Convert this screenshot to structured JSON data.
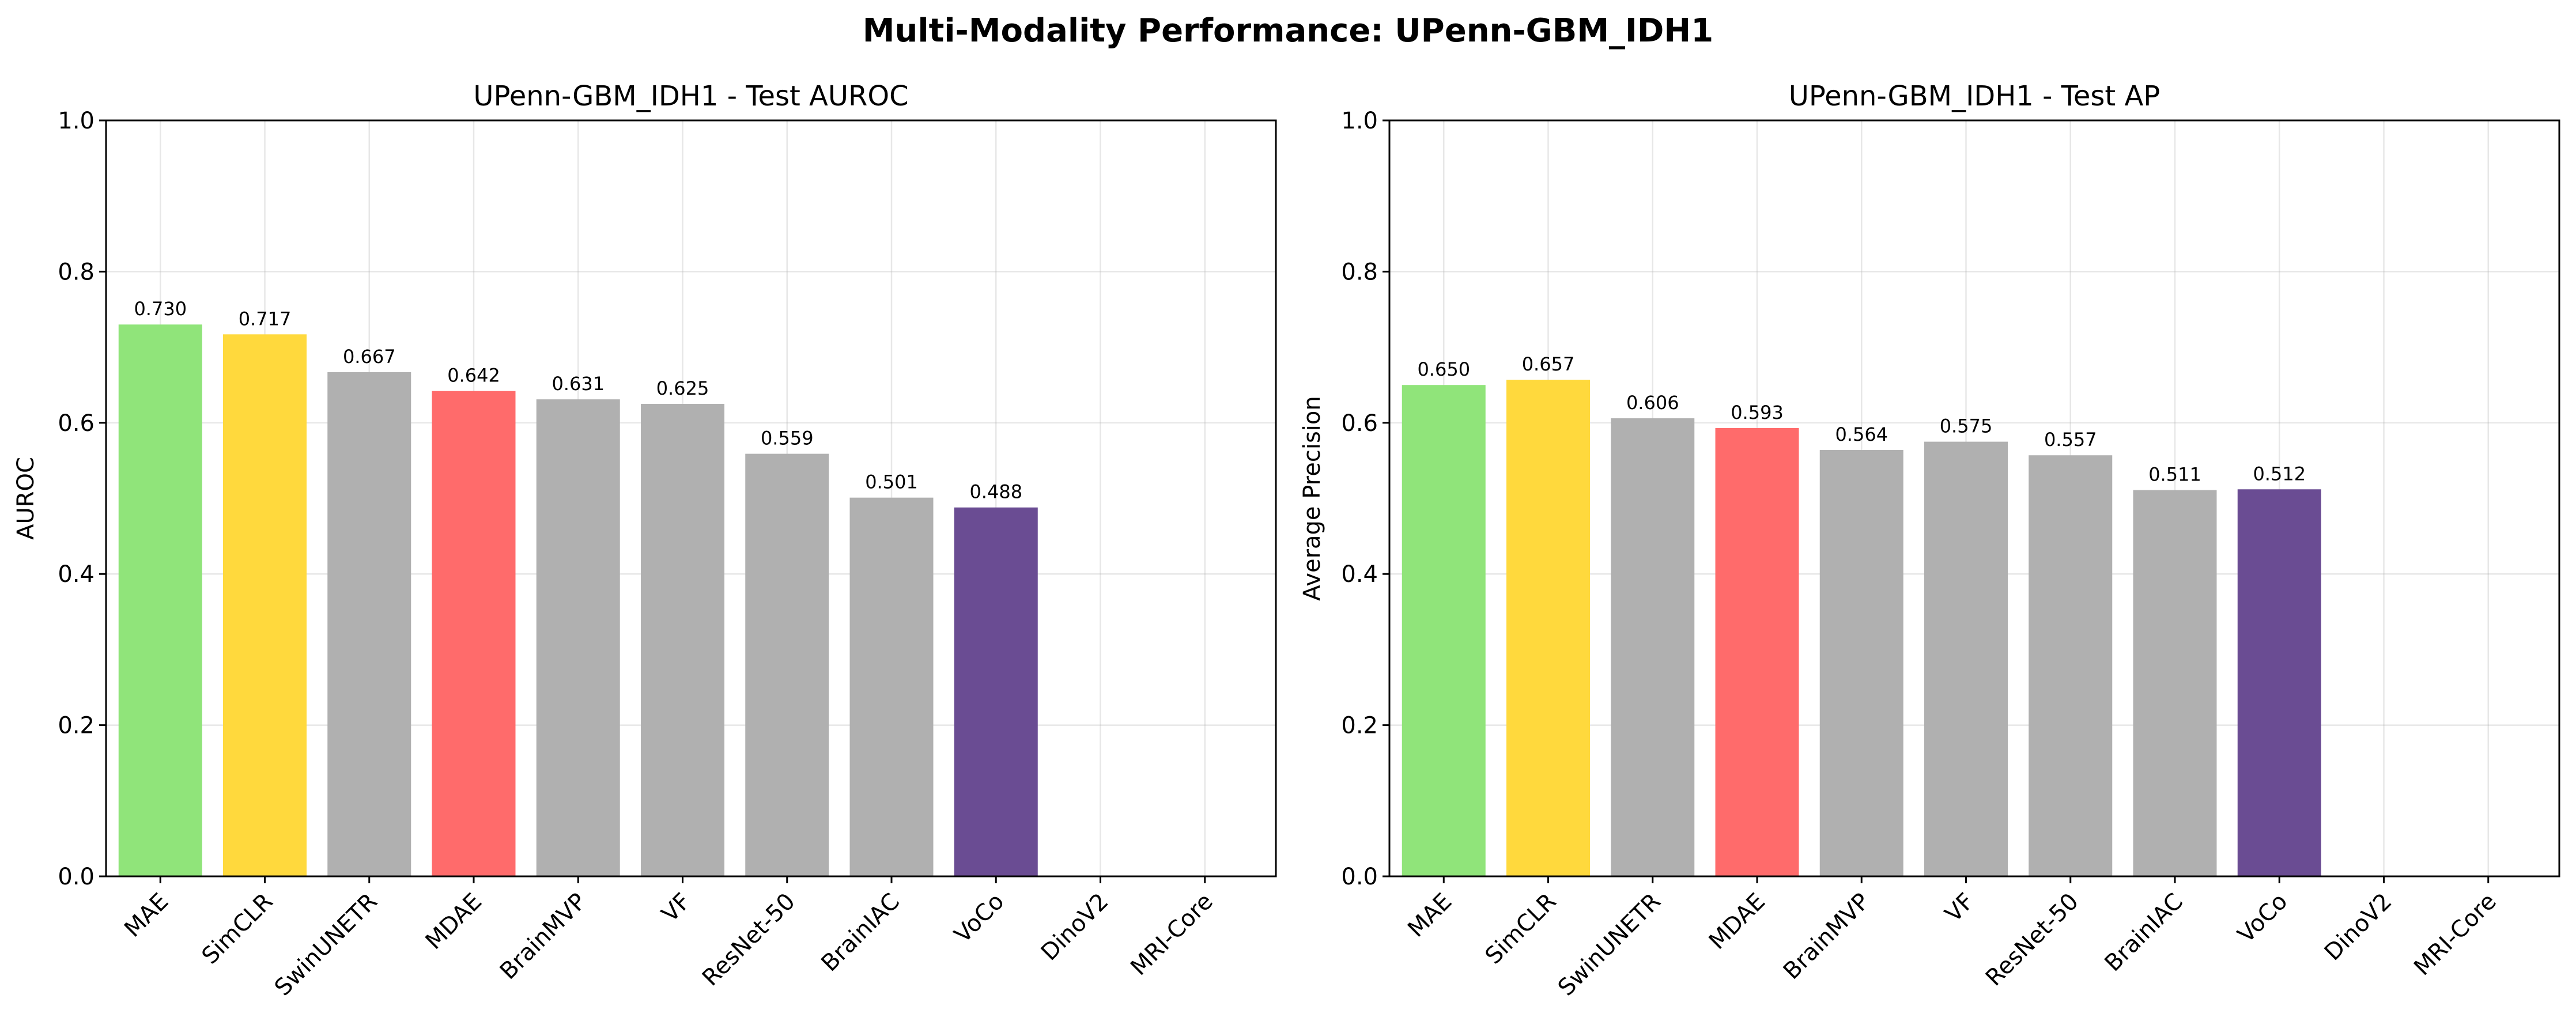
{
  "figure": {
    "suptitle": "Multi-Modality Performance: UPenn-GBM_IDH1"
  },
  "chart_data": [
    {
      "type": "bar",
      "title": "UPenn-GBM_IDH1 - Test AUROC",
      "xlabel": "",
      "ylabel": "AUROC",
      "ylim": [
        0,
        1
      ],
      "yticks": [
        "0.0",
        "0.2",
        "0.4",
        "0.6",
        "0.8",
        "1.0"
      ],
      "grid": true,
      "categories": [
        "MAE",
        "SimCLR",
        "SwinUNETR",
        "MDAE",
        "BrainMVP",
        "VF",
        "ResNet-50",
        "BrainIAC",
        "VoCo",
        "DinoV2",
        "MRI-Core"
      ],
      "values": [
        0.73,
        0.717,
        0.667,
        0.642,
        0.631,
        0.625,
        0.559,
        0.501,
        0.488,
        null,
        null
      ],
      "value_labels": [
        "0.730",
        "0.717",
        "0.667",
        "0.642",
        "0.631",
        "0.625",
        "0.559",
        "0.501",
        "0.488",
        "",
        ""
      ],
      "colors": [
        "#90e47a",
        "#ffd93d",
        "#b0b0b0",
        "#ff6b6b",
        "#b0b0b0",
        "#b0b0b0",
        "#b0b0b0",
        "#b0b0b0",
        "#6a4c93",
        "#b0b0b0",
        "#b0b0b0"
      ]
    },
    {
      "type": "bar",
      "title": "UPenn-GBM_IDH1 - Test AP",
      "xlabel": "",
      "ylabel": "Average Precision",
      "ylim": [
        0,
        1
      ],
      "yticks": [
        "0.0",
        "0.2",
        "0.4",
        "0.6",
        "0.8",
        "1.0"
      ],
      "grid": true,
      "categories": [
        "MAE",
        "SimCLR",
        "SwinUNETR",
        "MDAE",
        "BrainMVP",
        "VF",
        "ResNet-50",
        "BrainIAC",
        "VoCo",
        "DinoV2",
        "MRI-Core"
      ],
      "values": [
        0.65,
        0.657,
        0.606,
        0.593,
        0.564,
        0.575,
        0.557,
        0.511,
        0.512,
        null,
        null
      ],
      "value_labels": [
        "0.650",
        "0.657",
        "0.606",
        "0.593",
        "0.564",
        "0.575",
        "0.557",
        "0.511",
        "0.512",
        "",
        ""
      ],
      "colors": [
        "#90e47a",
        "#ffd93d",
        "#b0b0b0",
        "#ff6b6b",
        "#b0b0b0",
        "#b0b0b0",
        "#b0b0b0",
        "#b0b0b0",
        "#6a4c93",
        "#b0b0b0",
        "#b0b0b0"
      ]
    }
  ]
}
